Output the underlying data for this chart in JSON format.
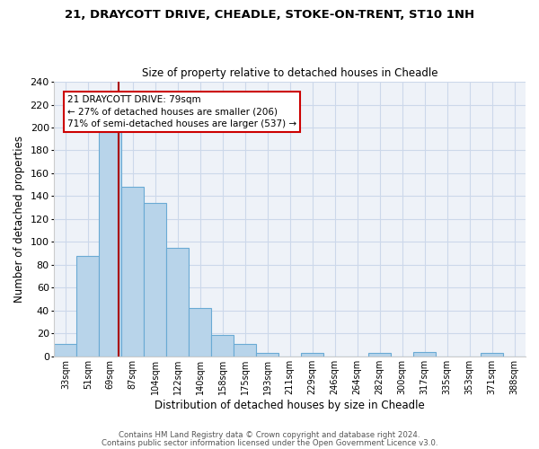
{
  "title": "21, DRAYCOTT DRIVE, CHEADLE, STOKE-ON-TRENT, ST10 1NH",
  "subtitle": "Size of property relative to detached houses in Cheadle",
  "xlabel": "Distribution of detached houses by size in Cheadle",
  "ylabel": "Number of detached properties",
  "bar_labels": [
    "33sqm",
    "51sqm",
    "69sqm",
    "87sqm",
    "104sqm",
    "122sqm",
    "140sqm",
    "158sqm",
    "175sqm",
    "193sqm",
    "211sqm",
    "229sqm",
    "246sqm",
    "264sqm",
    "282sqm",
    "300sqm",
    "317sqm",
    "335sqm",
    "353sqm",
    "371sqm",
    "388sqm"
  ],
  "bar_values": [
    11,
    88,
    196,
    148,
    134,
    95,
    42,
    19,
    11,
    3,
    0,
    3,
    0,
    0,
    3,
    0,
    4,
    0,
    0,
    3,
    0
  ],
  "bar_color": "#b8d4ea",
  "bar_edge_color": "#6aaad4",
  "vline_color": "#aa0000",
  "vline_x": 2.35,
  "annotation_title": "21 DRAYCOTT DRIVE: 79sqm",
  "annotation_line1": "← 27% of detached houses are smaller (206)",
  "annotation_line2": "71% of semi-detached houses are larger (537) →",
  "annotation_box_color": "#ffffff",
  "annotation_box_edge": "#cc0000",
  "ylim": [
    0,
    240
  ],
  "yticks": [
    0,
    20,
    40,
    60,
    80,
    100,
    120,
    140,
    160,
    180,
    200,
    220,
    240
  ],
  "footer1": "Contains HM Land Registry data © Crown copyright and database right 2024.",
  "footer2": "Contains public sector information licensed under the Open Government Licence v3.0.",
  "background_color": "#ffffff",
  "grid_color": "#ccd8ea",
  "plot_bg_color": "#eef2f8"
}
